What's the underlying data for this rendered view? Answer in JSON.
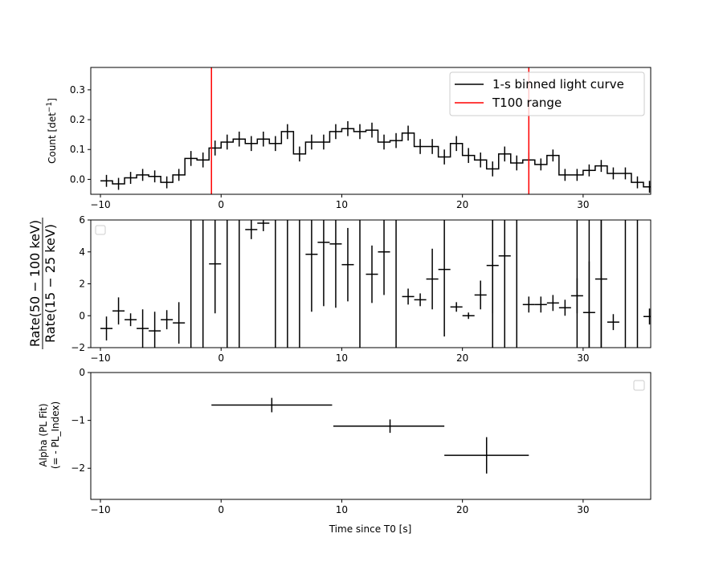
{
  "chart_data": [
    {
      "type": "line",
      "panel": "light-curve",
      "xlim": [
        -10.8,
        35.6
      ],
      "ylim": [
        -0.05,
        0.375
      ],
      "ylabel_main": "Count [det",
      "ylabel_sup": "−1",
      "ylabel_end": "]",
      "yticks": [
        0.0,
        0.1,
        0.2,
        0.3
      ],
      "ytick_labels": [
        "0.0",
        "0.1",
        "0.2",
        "0.3"
      ],
      "xticks": [
        -10,
        0,
        10,
        20,
        30
      ],
      "xtick_labels": [
        "−10",
        "0",
        "10",
        "20",
        "30"
      ],
      "legend_position": "upper right",
      "series": [
        {
          "name": "1-s binned light curve",
          "color": "#000000",
          "drawstyle": "steps-mid",
          "x": [
            -9.5,
            -8.5,
            -7.5,
            -6.5,
            -5.5,
            -4.5,
            -3.5,
            -2.5,
            -1.5,
            -0.5,
            0.5,
            1.5,
            2.5,
            3.5,
            4.5,
            5.5,
            6.5,
            7.5,
            8.5,
            9.5,
            10.5,
            11.5,
            12.5,
            13.5,
            14.5,
            15.5,
            16.5,
            17.5,
            18.5,
            19.5,
            20.5,
            21.5,
            22.5,
            23.5,
            24.5,
            25.5,
            26.5,
            27.5,
            28.5,
            29.5,
            30.5,
            31.5,
            32.5,
            33.5,
            34.5,
            35.5
          ],
          "y": [
            -0.005,
            -0.015,
            0.005,
            0.015,
            0.01,
            -0.01,
            0.015,
            0.07,
            0.065,
            0.105,
            0.125,
            0.135,
            0.12,
            0.135,
            0.12,
            0.16,
            0.085,
            0.125,
            0.125,
            0.16,
            0.17,
            0.16,
            0.165,
            0.125,
            0.13,
            0.155,
            0.11,
            0.11,
            0.075,
            0.12,
            0.08,
            0.065,
            0.035,
            0.085,
            0.055,
            0.065,
            0.05,
            0.08,
            0.015,
            0.015,
            0.03,
            0.045,
            0.02,
            0.02,
            -0.01,
            -0.025
          ],
          "yerr": [
            0.02,
            0.02,
            0.02,
            0.02,
            0.02,
            0.02,
            0.02,
            0.025,
            0.025,
            0.025,
            0.025,
            0.025,
            0.025,
            0.025,
            0.025,
            0.025,
            0.025,
            0.025,
            0.025,
            0.025,
            0.025,
            0.025,
            0.025,
            0.025,
            0.025,
            0.025,
            0.025,
            0.025,
            0.025,
            0.025,
            0.025,
            0.025,
            0.025,
            0.025,
            0.025,
            0.025,
            0.02,
            0.02,
            0.02,
            0.02,
            0.02,
            0.02,
            0.02,
            0.02,
            0.02,
            0.02
          ]
        },
        {
          "name": "T100 range",
          "color": "#ff0000",
          "type": "vlines",
          "x": [
            -0.8,
            25.5
          ]
        }
      ]
    },
    {
      "type": "scatter",
      "panel": "hardness-ratio",
      "xlim": [
        -10.8,
        35.6
      ],
      "ylim": [
        -2,
        6
      ],
      "ylabel_num": "Rate(50 − 100 keV)",
      "ylabel_den": "Rate(15 − 25 keV)",
      "yticks": [
        -2,
        0,
        2,
        4,
        6
      ],
      "ytick_labels": [
        "−2",
        "0",
        "2",
        "4",
        "6"
      ],
      "xticks": [
        -10,
        0,
        10,
        20,
        30
      ],
      "xtick_labels": [
        "−10",
        "0",
        "10",
        "20",
        "30"
      ],
      "series": [
        {
          "color": "#000000",
          "x": [
            -9.5,
            -8.5,
            -7.5,
            -6.5,
            -5.5,
            -4.5,
            -3.5,
            -2.5,
            -1.5,
            -0.5,
            0.5,
            1.5,
            2.5,
            3.5,
            4.5,
            5.5,
            6.5,
            7.5,
            8.5,
            9.5,
            10.5,
            11.5,
            12.5,
            13.5,
            14.5,
            15.5,
            16.5,
            17.5,
            18.5,
            19.5,
            20.5,
            21.5,
            22.5,
            23.5,
            24.5,
            25.5,
            26.5,
            27.5,
            28.5,
            29.5,
            30.5,
            31.5,
            32.5,
            33.5,
            34.5,
            35.5
          ],
          "y": [
            -0.8,
            0.3,
            -0.25,
            -0.8,
            -0.95,
            -0.25,
            -0.45,
            null,
            null,
            3.25,
            null,
            null,
            5.4,
            5.8,
            null,
            null,
            null,
            3.85,
            4.6,
            4.5,
            3.2,
            null,
            2.6,
            4.0,
            null,
            1.2,
            1.0,
            2.3,
            2.9,
            0.55,
            0.0,
            1.3,
            3.15,
            3.75,
            null,
            0.7,
            0.7,
            0.8,
            0.5,
            1.25,
            0.2,
            2.3,
            -0.4,
            null,
            null,
            -0.05
          ],
          "yerr": [
            0.75,
            0.85,
            0.4,
            1.2,
            1.2,
            0.6,
            1.3,
            null,
            null,
            3.1,
            null,
            null,
            0.6,
            0.5,
            null,
            null,
            null,
            3.6,
            4.0,
            4.0,
            2.3,
            null,
            1.8,
            2.7,
            null,
            0.5,
            0.4,
            1.9,
            4.2,
            0.3,
            0.2,
            0.9,
            3.0,
            2.9,
            null,
            0.5,
            0.5,
            0.5,
            0.5,
            1.1,
            3.2,
            4.3,
            0.5,
            null,
            null,
            0.5
          ],
          "full_height_error_bars_x": [
            -2.5,
            -1.5,
            0.5,
            1.5,
            4.5,
            5.5,
            6.5,
            11.5,
            14.5,
            22.5,
            23.5,
            24.5,
            29.5,
            30.5,
            31.5,
            33.5,
            34.5
          ]
        }
      ]
    },
    {
      "type": "scatter",
      "panel": "alpha",
      "xlim": [
        -10.8,
        35.6
      ],
      "ylim": [
        -2.65,
        0
      ],
      "ylabel_line1": "Alpha (PL Fit)",
      "ylabel_line2": "(= - PL_Index)",
      "xlabel": "Time since T0 [s]",
      "yticks": [
        0,
        -1,
        -2
      ],
      "ytick_labels": [
        "0",
        "−1",
        "−2"
      ],
      "xticks": [
        -10,
        0,
        10,
        20,
        30
      ],
      "xtick_labels": [
        "−10",
        "0",
        "10",
        "20",
        "30"
      ],
      "series": [
        {
          "color": "#000000",
          "x": [
            4.2,
            14.0,
            22.0
          ],
          "xlo": [
            -0.8,
            9.3,
            18.5
          ],
          "xhi": [
            9.2,
            18.5,
            25.5
          ],
          "y": [
            -0.68,
            -1.12,
            -1.73
          ],
          "yerr": [
            0.15,
            0.14,
            0.38
          ]
        }
      ]
    }
  ]
}
